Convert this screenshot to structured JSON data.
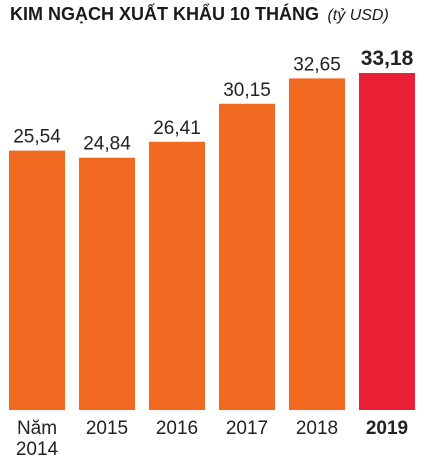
{
  "chart_data": {
    "type": "bar",
    "title": "KIM NGẠCH XUẤT KHẨU 10 THÁNG",
    "unit": "(tỷ USD)",
    "categories": [
      "Năm 2014",
      "2015",
      "2016",
      "2017",
      "2018",
      "2019"
    ],
    "category_lines": [
      [
        "Năm",
        "2014"
      ],
      [
        "2015"
      ],
      [
        "2016"
      ],
      [
        "2017"
      ],
      [
        "2018"
      ],
      [
        "2019"
      ]
    ],
    "values": [
      25.54,
      24.84,
      26.41,
      30.15,
      32.65,
      33.18
    ],
    "value_labels": [
      "25,54",
      "24,84",
      "26,41",
      "30,15",
      "32,65",
      "33,18"
    ],
    "highlight_index": 5,
    "ylim": [
      0,
      33.18
    ],
    "grid": false,
    "colors": {
      "bar": "#f26a21",
      "highlight": "#ea1f36"
    }
  }
}
